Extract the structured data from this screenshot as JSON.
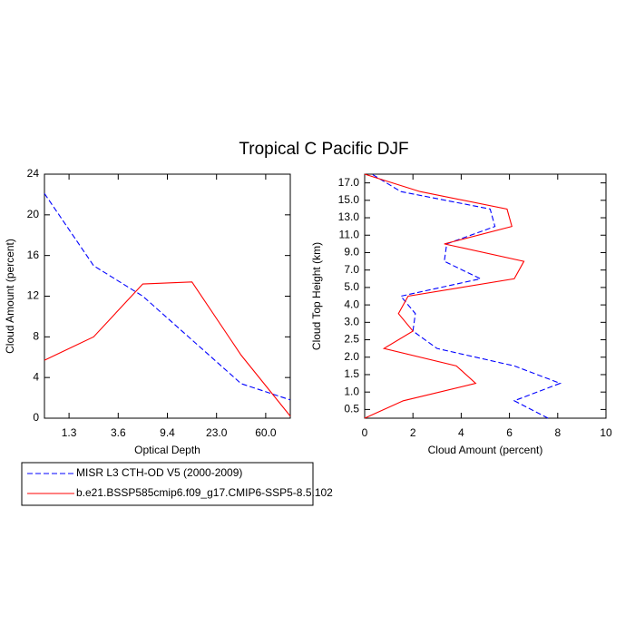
{
  "title": "Tropical C Pacific DJF",
  "chart_data": [
    {
      "type": "line",
      "orientation": "vertical",
      "x_label": "Optical Depth",
      "y_label": "Cloud Amount (percent)",
      "x": [
        0,
        1,
        2,
        3,
        4,
        5
      ],
      "xlim": [
        0,
        5
      ],
      "xticks": [
        {
          "value": 0.5,
          "label": "1.3"
        },
        {
          "value": 1.5,
          "label": "3.6"
        },
        {
          "value": 2.5,
          "label": "9.4"
        },
        {
          "value": 3.5,
          "label": "23.0"
        },
        {
          "value": 4.5,
          "label": "60.0"
        }
      ],
      "ylim": [
        0,
        24
      ],
      "yticks": [
        0,
        4,
        8,
        12,
        16,
        20,
        24
      ],
      "series": [
        {
          "name": "MISR L3 CTH-OD V5 (2000-2009)",
          "color": "#0000ff",
          "style": "dashed",
          "values": [
            22.1,
            15.0,
            12.0,
            7.7,
            3.4,
            1.8
          ]
        },
        {
          "name": "b.e21.BSSP585cmip6.f09_g17.CMIP6-SSP5-8.5.102",
          "color": "#ff0000",
          "style": "solid",
          "values": [
            5.7,
            8.0,
            13.2,
            13.4,
            6.2,
            0.2
          ]
        }
      ]
    },
    {
      "type": "line",
      "orientation": "horizontal",
      "x_label": "Cloud Amount (percent)",
      "y_label": "Cloud Top Height (km)",
      "y": [
        0,
        1,
        2,
        3,
        4,
        5,
        6,
        7,
        8,
        9,
        10,
        11,
        12,
        13,
        14
      ],
      "ylim": [
        0,
        14
      ],
      "yticks": [
        {
          "value": 0.5,
          "label": "0.5"
        },
        {
          "value": 1.5,
          "label": "1.0"
        },
        {
          "value": 2.5,
          "label": "1.5"
        },
        {
          "value": 3.5,
          "label": "2.0"
        },
        {
          "value": 4.5,
          "label": "2.5"
        },
        {
          "value": 5.5,
          "label": "3.0"
        },
        {
          "value": 6.5,
          "label": "4.0"
        },
        {
          "value": 7.5,
          "label": "5.0"
        },
        {
          "value": 8.5,
          "label": "7.0"
        },
        {
          "value": 9.5,
          "label": "9.0"
        },
        {
          "value": 10.5,
          "label": "11.0"
        },
        {
          "value": 11.5,
          "label": "13.0"
        },
        {
          "value": 12.5,
          "label": "15.0"
        },
        {
          "value": 13.5,
          "label": "17.0"
        }
      ],
      "xlim": [
        0,
        10
      ],
      "xticks": [
        0,
        2,
        4,
        6,
        8,
        10
      ],
      "series": [
        {
          "color": "#0000ff",
          "style": "dashed",
          "values": [
            7.6,
            6.2,
            8.1,
            6.2,
            3.0,
            2.0,
            2.1,
            1.5,
            4.8,
            3.3,
            3.4,
            5.4,
            5.2,
            1.5,
            0.3
          ]
        },
        {
          "color": "#ff0000",
          "style": "solid",
          "values": [
            0.0,
            1.6,
            4.6,
            3.8,
            0.8,
            2.0,
            1.4,
            1.8,
            6.2,
            6.6,
            3.3,
            6.1,
            5.9,
            2.3,
            0.0
          ]
        }
      ]
    }
  ]
}
